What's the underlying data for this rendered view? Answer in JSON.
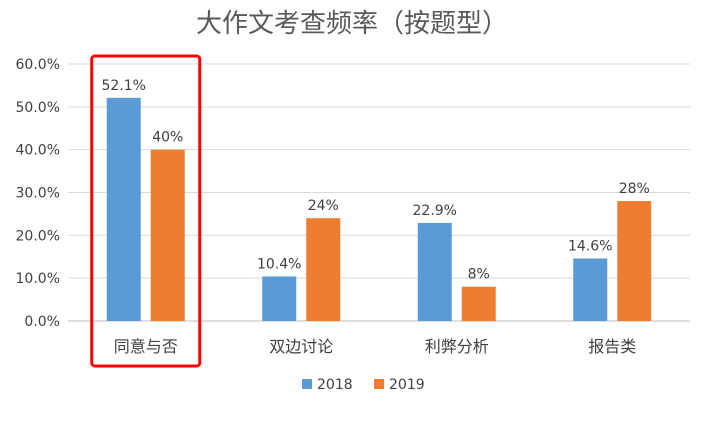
{
  "chart_data": {
    "type": "bar",
    "title": "大作文考查频率（按题型）",
    "categories": [
      "同意与否",
      "双边讨论",
      "利弊分析",
      "报告类"
    ],
    "series": [
      {
        "name": "2018",
        "color": "#5B9BD5",
        "values": [
          52.1,
          10.4,
          22.9,
          14.6
        ],
        "labels": [
          "52.1%",
          "10.4%",
          "22.9%",
          "14.6%"
        ]
      },
      {
        "name": "2019",
        "color": "#ED7D31",
        "values": [
          40,
          24,
          8,
          28
        ],
        "labels": [
          "40%",
          "24%",
          "8%",
          "28%"
        ]
      }
    ],
    "ylim": [
      0,
      60
    ],
    "yticks": [
      "0.0%",
      "10.0%",
      "20.0%",
      "30.0%",
      "40.0%",
      "50.0%",
      "60.0%"
    ],
    "xlabel": "",
    "ylabel": "",
    "grid": true,
    "legend": "bottom",
    "highlight": {
      "category": "同意与否",
      "color": "#FF0000"
    }
  }
}
